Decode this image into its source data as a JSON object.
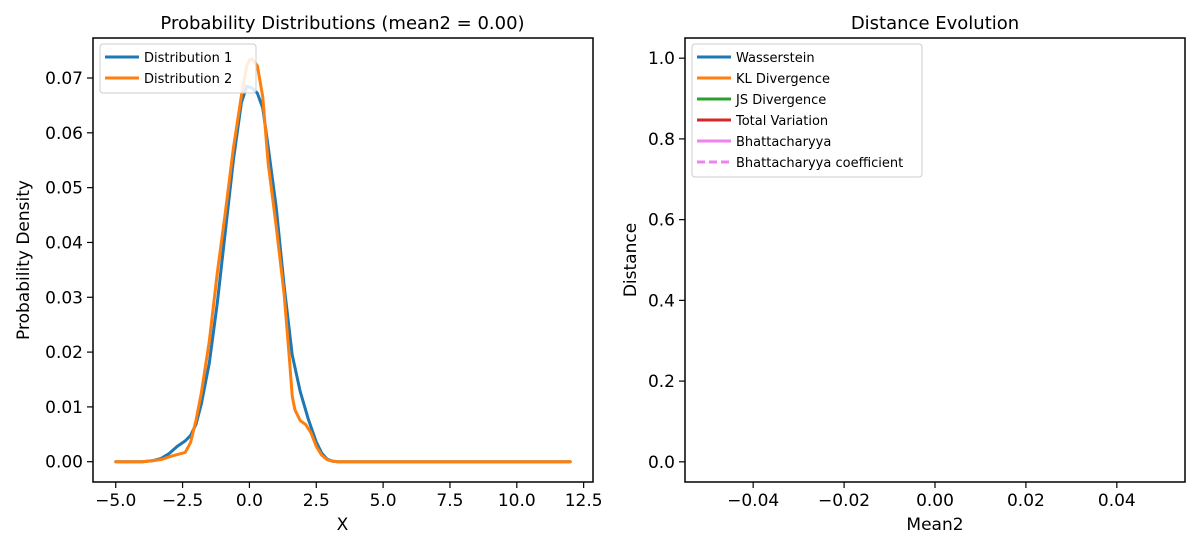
{
  "chart_data": [
    {
      "type": "line",
      "title": "Probability Distributions (mean2 = 0.00)",
      "xlabel": "X",
      "ylabel": "Probability Density",
      "xlim": [
        -5.85,
        12.85
      ],
      "ylim": [
        -0.0037,
        0.0773
      ],
      "xticks": [
        -5.0,
        -2.5,
        0.0,
        2.5,
        5.0,
        7.5,
        10.0,
        12.5
      ],
      "xtick_labels": [
        "−5.0",
        "−2.5",
        "0.0",
        "2.5",
        "5.0",
        "7.5",
        "10.0",
        "12.5"
      ],
      "yticks": [
        0.0,
        0.01,
        0.02,
        0.03,
        0.04,
        0.05,
        0.06,
        0.07
      ],
      "ytick_labels": [
        "0.00",
        "0.01",
        "0.02",
        "0.03",
        "0.04",
        "0.05",
        "0.06",
        "0.07"
      ],
      "legend_position": "top-left",
      "series": [
        {
          "name": "Distribution 1",
          "color": "#1f77b4",
          "x": [
            -5.0,
            -4.0,
            -3.6,
            -3.3,
            -3.0,
            -2.7,
            -2.4,
            -2.2,
            -2.0,
            -1.8,
            -1.5,
            -1.2,
            -0.9,
            -0.6,
            -0.3,
            -0.1,
            0.1,
            0.3,
            0.5,
            0.7,
            1.0,
            1.3,
            1.6,
            1.9,
            2.2,
            2.5,
            2.7,
            2.9,
            3.1,
            3.3,
            3.6,
            4.0,
            5.0,
            7.5,
            10.0,
            12.0
          ],
          "y": [
            0.0,
            0.0,
            0.0002,
            0.0006,
            0.0015,
            0.0028,
            0.0038,
            0.0048,
            0.0068,
            0.0105,
            0.018,
            0.029,
            0.042,
            0.055,
            0.0655,
            0.0685,
            0.0682,
            0.0672,
            0.0645,
            0.0575,
            0.0465,
            0.032,
            0.0195,
            0.0128,
            0.0078,
            0.0036,
            0.0016,
            0.0005,
            0.0001,
            0.0,
            0.0,
            0.0,
            0.0,
            0.0,
            0.0,
            0.0
          ]
        },
        {
          "name": "Distribution 2",
          "color": "#ff7f0e",
          "x": [
            -5.0,
            -4.0,
            -3.6,
            -3.3,
            -3.0,
            -2.7,
            -2.4,
            -2.2,
            -2.0,
            -1.8,
            -1.5,
            -1.2,
            -0.9,
            -0.6,
            -0.3,
            -0.1,
            0.0,
            0.1,
            0.3,
            0.5,
            0.7,
            1.0,
            1.3,
            1.5,
            1.6,
            1.7,
            1.9,
            2.1,
            2.3,
            2.5,
            2.7,
            2.9,
            3.1,
            3.3,
            3.6,
            4.0,
            5.0,
            7.5,
            10.0,
            12.0
          ],
          "y": [
            0.0,
            0.0,
            0.0002,
            0.0004,
            0.0009,
            0.0013,
            0.0017,
            0.0035,
            0.0075,
            0.0125,
            0.022,
            0.0345,
            0.0455,
            0.0572,
            0.0668,
            0.0722,
            0.0733,
            0.0735,
            0.0722,
            0.0665,
            0.0545,
            0.043,
            0.0305,
            0.0185,
            0.012,
            0.0095,
            0.0075,
            0.0068,
            0.0053,
            0.0028,
            0.0012,
            0.0004,
            0.0001,
            0.0,
            0.0,
            0.0,
            0.0,
            0.0,
            0.0,
            0.0
          ]
        }
      ]
    },
    {
      "type": "line",
      "title": "Distance Evolution",
      "xlabel": "Mean2",
      "ylabel": "Distance",
      "xlim": [
        -0.055,
        0.055
      ],
      "ylim": [
        -0.05,
        1.05
      ],
      "xticks": [
        -0.04,
        -0.02,
        0.0,
        0.02,
        0.04
      ],
      "xtick_labels": [
        "−0.04",
        "−0.02",
        "0.00",
        "0.02",
        "0.04"
      ],
      "yticks": [
        0.0,
        0.2,
        0.4,
        0.6,
        0.8,
        1.0
      ],
      "ytick_labels": [
        "0.0",
        "0.2",
        "0.4",
        "0.6",
        "0.8",
        "1.0"
      ],
      "legend_position": "top-left",
      "series": [
        {
          "name": "Wasserstein",
          "color": "#1f77b4",
          "linestyle": "solid",
          "x": [],
          "y": []
        },
        {
          "name": "KL Divergence",
          "color": "#ff7f0e",
          "linestyle": "solid",
          "x": [],
          "y": []
        },
        {
          "name": "JS Divergence",
          "color": "#2ca02c",
          "linestyle": "solid",
          "x": [],
          "y": []
        },
        {
          "name": "Total Variation",
          "color": "#d62728",
          "linestyle": "solid",
          "x": [],
          "y": []
        },
        {
          "name": "Bhattacharyya",
          "color": "#ee82ee",
          "linestyle": "solid",
          "x": [],
          "y": []
        },
        {
          "name": "Bhattacharyya coefficient",
          "color": "#ee82ee",
          "linestyle": "dashed",
          "x": [],
          "y": []
        }
      ]
    }
  ]
}
